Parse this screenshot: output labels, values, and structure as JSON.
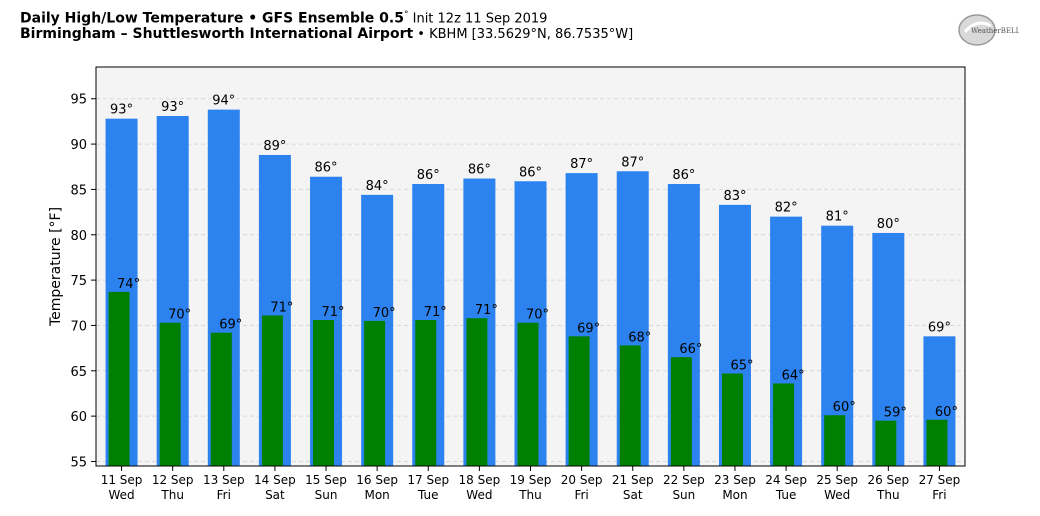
{
  "header": {
    "line1_bold": "Daily High/Low Temperature • GFS Ensemble 0.5",
    "line1_deg": "°",
    "line1_rest": " Init 12z 11 Sep 2019",
    "line2_bold": "Birmingham – Shuttlesworth International Airport",
    "line2_rest": " • KBHM [33.5629°N, 86.7535°W]",
    "logo_text": "WeatherBELL"
  },
  "colors": {
    "high": "#2c83ef",
    "low": "#007f00",
    "plot_bg": "#f4f4f4",
    "grid": "#d8d8d8"
  },
  "chart_data": {
    "type": "bar",
    "ylabel": "Temperature [°F]",
    "ylim": [
      54.5,
      98.5
    ],
    "yticks": [
      55,
      60,
      65,
      70,
      75,
      80,
      85,
      90,
      95
    ],
    "grid": true,
    "categories": [
      {
        "date": "11 Sep",
        "day": "Wed"
      },
      {
        "date": "12 Sep",
        "day": "Thu"
      },
      {
        "date": "13 Sep",
        "day": "Fri"
      },
      {
        "date": "14 Sep",
        "day": "Sat"
      },
      {
        "date": "15 Sep",
        "day": "Sun"
      },
      {
        "date": "16 Sep",
        "day": "Mon"
      },
      {
        "date": "17 Sep",
        "day": "Tue"
      },
      {
        "date": "18 Sep",
        "day": "Wed"
      },
      {
        "date": "19 Sep",
        "day": "Thu"
      },
      {
        "date": "20 Sep",
        "day": "Fri"
      },
      {
        "date": "21 Sep",
        "day": "Sat"
      },
      {
        "date": "22 Sep",
        "day": "Sun"
      },
      {
        "date": "23 Sep",
        "day": "Mon"
      },
      {
        "date": "24 Sep",
        "day": "Tue"
      },
      {
        "date": "25 Sep",
        "day": "Wed"
      },
      {
        "date": "26 Sep",
        "day": "Thu"
      },
      {
        "date": "27 Sep",
        "day": "Fri"
      }
    ],
    "series": [
      {
        "key": "high",
        "values": [
          92.8,
          93.1,
          93.8,
          88.8,
          86.4,
          84.4,
          85.6,
          86.2,
          85.9,
          86.8,
          87.0,
          85.6,
          83.3,
          82.0,
          81.0,
          80.2,
          68.8
        ],
        "labels": [
          "93°",
          "93°",
          "94°",
          "89°",
          "86°",
          "84°",
          "86°",
          "86°",
          "86°",
          "87°",
          "87°",
          "86°",
          "83°",
          "82°",
          "81°",
          "80°",
          "69°"
        ]
      },
      {
        "key": "low",
        "values": [
          73.7,
          70.3,
          69.2,
          71.1,
          70.6,
          70.5,
          70.6,
          70.8,
          70.3,
          68.8,
          67.8,
          66.5,
          64.7,
          63.6,
          60.1,
          59.5,
          59.6
        ],
        "labels": [
          "74°",
          "70°",
          "69°",
          "71°",
          "71°",
          "70°",
          "71°",
          "71°",
          "70°",
          "69°",
          "68°",
          "66°",
          "65°",
          "64°",
          "60°",
          "59°",
          "60°"
        ]
      }
    ]
  }
}
